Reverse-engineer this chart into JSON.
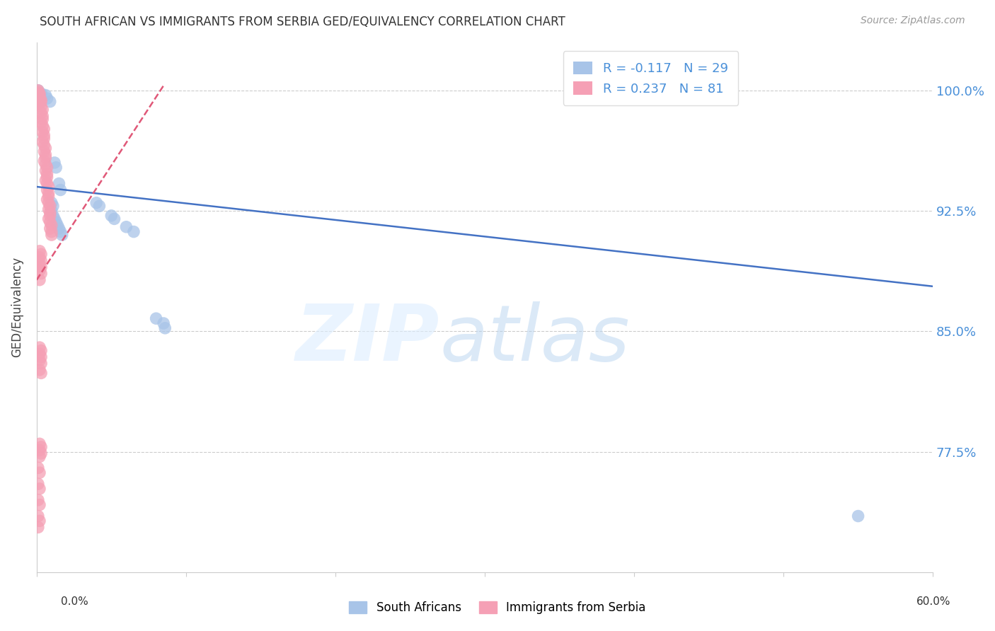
{
  "title": "SOUTH AFRICAN VS IMMIGRANTS FROM SERBIA GED/EQUIVALENCY CORRELATION CHART",
  "source": "Source: ZipAtlas.com",
  "ylabel": "GED/Equivalency",
  "ytick_labels": [
    "100.0%",
    "92.5%",
    "85.0%",
    "77.5%"
  ],
  "ytick_values": [
    1.0,
    0.925,
    0.85,
    0.775
  ],
  "xmin": 0.0,
  "xmax": 0.6,
  "ymin": 0.7,
  "ymax": 1.03,
  "legend_blue_r": "-0.117",
  "legend_blue_n": "29",
  "legend_pink_r": "0.237",
  "legend_pink_n": "81",
  "blue_color": "#a8c4e8",
  "pink_color": "#f5a0b5",
  "blue_line_color": "#4472c4",
  "pink_line_color": "#e05878",
  "pink_line_dash": true,
  "scatter_blue": [
    [
      0.001,
      1.0
    ],
    [
      0.003,
      0.998
    ],
    [
      0.006,
      0.997
    ],
    [
      0.007,
      0.995
    ],
    [
      0.009,
      0.993
    ],
    [
      0.012,
      0.955
    ],
    [
      0.013,
      0.952
    ],
    [
      0.015,
      0.942
    ],
    [
      0.016,
      0.938
    ],
    [
      0.01,
      0.93
    ],
    [
      0.011,
      0.928
    ],
    [
      0.01,
      0.925
    ],
    [
      0.011,
      0.922
    ],
    [
      0.012,
      0.92
    ],
    [
      0.013,
      0.918
    ],
    [
      0.014,
      0.916
    ],
    [
      0.015,
      0.914
    ],
    [
      0.016,
      0.912
    ],
    [
      0.017,
      0.91
    ],
    [
      0.04,
      0.93
    ],
    [
      0.042,
      0.928
    ],
    [
      0.05,
      0.922
    ],
    [
      0.052,
      0.92
    ],
    [
      0.06,
      0.915
    ],
    [
      0.065,
      0.912
    ],
    [
      0.08,
      0.858
    ],
    [
      0.085,
      0.855
    ],
    [
      0.086,
      0.852
    ],
    [
      0.55,
      0.735
    ]
  ],
  "scatter_pink": [
    [
      0.001,
      1.0
    ],
    [
      0.001,
      0.999
    ],
    [
      0.002,
      0.998
    ],
    [
      0.002,
      0.997
    ],
    [
      0.001,
      0.996
    ],
    [
      0.002,
      0.995
    ],
    [
      0.003,
      0.994
    ],
    [
      0.003,
      0.993
    ],
    [
      0.002,
      0.992
    ],
    [
      0.003,
      0.99
    ],
    [
      0.004,
      0.988
    ],
    [
      0.003,
      0.986
    ],
    [
      0.004,
      0.984
    ],
    [
      0.004,
      0.982
    ],
    [
      0.003,
      0.98
    ],
    [
      0.004,
      0.978
    ],
    [
      0.005,
      0.976
    ],
    [
      0.004,
      0.974
    ],
    [
      0.005,
      0.972
    ],
    [
      0.005,
      0.97
    ],
    [
      0.004,
      0.968
    ],
    [
      0.005,
      0.966
    ],
    [
      0.006,
      0.964
    ],
    [
      0.005,
      0.962
    ],
    [
      0.006,
      0.96
    ],
    [
      0.006,
      0.958
    ],
    [
      0.005,
      0.956
    ],
    [
      0.006,
      0.954
    ],
    [
      0.007,
      0.952
    ],
    [
      0.006,
      0.95
    ],
    [
      0.007,
      0.948
    ],
    [
      0.007,
      0.946
    ],
    [
      0.006,
      0.944
    ],
    [
      0.007,
      0.942
    ],
    [
      0.008,
      0.94
    ],
    [
      0.007,
      0.938
    ],
    [
      0.008,
      0.936
    ],
    [
      0.008,
      0.934
    ],
    [
      0.007,
      0.932
    ],
    [
      0.008,
      0.93
    ],
    [
      0.009,
      0.928
    ],
    [
      0.008,
      0.926
    ],
    [
      0.009,
      0.924
    ],
    [
      0.009,
      0.922
    ],
    [
      0.008,
      0.92
    ],
    [
      0.009,
      0.918
    ],
    [
      0.01,
      0.916
    ],
    [
      0.009,
      0.914
    ],
    [
      0.01,
      0.912
    ],
    [
      0.01,
      0.91
    ],
    [
      0.002,
      0.9
    ],
    [
      0.003,
      0.898
    ],
    [
      0.002,
      0.896
    ],
    [
      0.003,
      0.894
    ],
    [
      0.002,
      0.892
    ],
    [
      0.003,
      0.89
    ],
    [
      0.002,
      0.888
    ],
    [
      0.003,
      0.886
    ],
    [
      0.002,
      0.882
    ],
    [
      0.002,
      0.84
    ],
    [
      0.003,
      0.838
    ],
    [
      0.002,
      0.836
    ],
    [
      0.003,
      0.834
    ],
    [
      0.002,
      0.832
    ],
    [
      0.003,
      0.83
    ],
    [
      0.002,
      0.826
    ],
    [
      0.003,
      0.824
    ],
    [
      0.002,
      0.78
    ],
    [
      0.003,
      0.778
    ],
    [
      0.002,
      0.776
    ],
    [
      0.003,
      0.774
    ],
    [
      0.002,
      0.772
    ],
    [
      0.001,
      0.765
    ],
    [
      0.002,
      0.762
    ],
    [
      0.001,
      0.755
    ],
    [
      0.002,
      0.752
    ],
    [
      0.001,
      0.745
    ],
    [
      0.002,
      0.742
    ],
    [
      0.001,
      0.735
    ],
    [
      0.002,
      0.732
    ],
    [
      0.001,
      0.728
    ]
  ],
  "blue_line": {
    "x0": 0.0,
    "y0": 0.94,
    "x1": 0.6,
    "y1": 0.878
  },
  "pink_line": {
    "x0": 0.0,
    "y0": 0.882,
    "x1": 0.085,
    "y1": 1.003
  }
}
